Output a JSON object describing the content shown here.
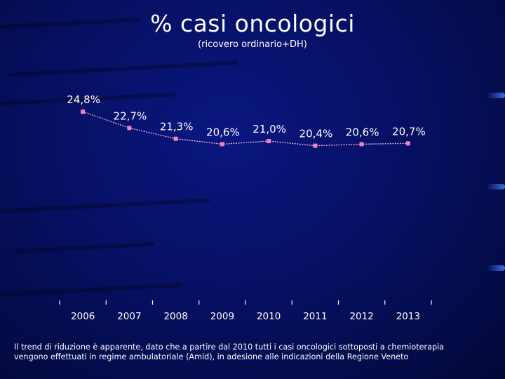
{
  "title": "% casi oncologici",
  "subtitle": "(ricovero ordinario+DH)",
  "chart_data": {
    "type": "line",
    "categories": [
      "2006",
      "2007",
      "2008",
      "2009",
      "2010",
      "2011",
      "2012",
      "2013"
    ],
    "values": [
      24.8,
      22.7,
      21.3,
      20.6,
      21.0,
      20.4,
      20.6,
      20.7
    ],
    "data_labels": [
      "24,8%",
      "22,7%",
      "21,3%",
      "20,6%",
      "21,0%",
      "20,4%",
      "20,6%",
      "20,7%"
    ],
    "ylim": [
      0,
      32
    ],
    "xlabel": "",
    "ylabel": "",
    "colors": {
      "marker": "#f080c0",
      "line": "#e8a8d8",
      "axis": "#ffffff"
    }
  },
  "footnote": {
    "line1": "Il trend di riduzione è apparente, dato che a partire dal 2010 tutti i casi oncologici sottoposti a chemioterapia",
    "line2": "vengono effettuati in regime ambulatoriale (Amid), in adesione alle indicazioni della Regione Veneto"
  }
}
